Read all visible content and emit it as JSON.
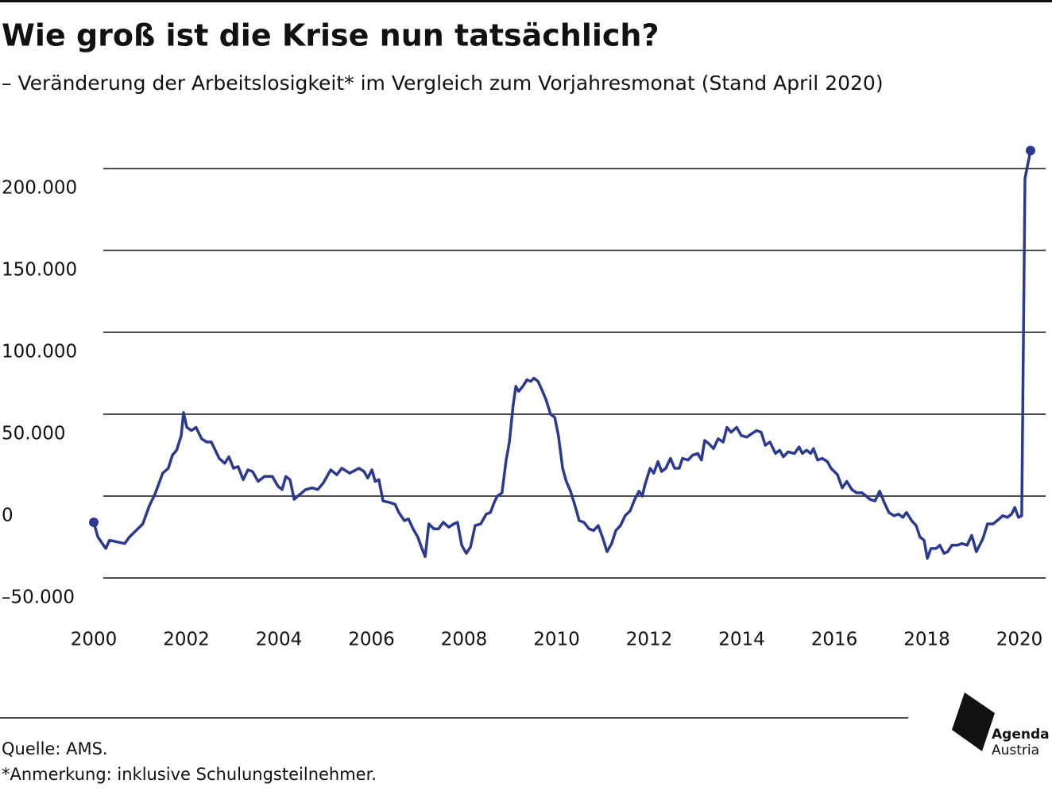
{
  "chart_data": {
    "type": "line",
    "title": "Wie groß ist die Krise nun tatsächlich?",
    "subtitle": "– Veränderung der Arbeitslosigkeit* im Vergleich zum Vorjahresmonat (Stand April 2020)",
    "x": [
      2000.0,
      2000.09,
      2000.26,
      2000.34,
      2000.67,
      2000.77,
      2001.06,
      2001.2,
      2001.32,
      2001.49,
      2001.61,
      2001.7,
      2001.79,
      2001.89,
      2001.94,
      2002.01,
      2002.11,
      2002.21,
      2002.33,
      2002.44,
      2002.54,
      2002.71,
      2002.83,
      2002.92,
      2003.02,
      2003.12,
      2003.23,
      2003.33,
      2003.43,
      2003.55,
      2003.69,
      2003.86,
      2003.98,
      2004.07,
      2004.15,
      2004.24,
      2004.33,
      2004.41,
      2004.58,
      2004.72,
      2004.84,
      2004.96,
      2005.12,
      2005.25,
      2005.36,
      2005.53,
      2005.73,
      2005.84,
      2005.92,
      2006.01,
      2006.08,
      2006.16,
      2006.25,
      2006.4,
      2006.51,
      2006.59,
      2006.71,
      2006.8,
      2006.9,
      2007.0,
      2007.09,
      2007.16,
      2007.24,
      2007.35,
      2007.45,
      2007.55,
      2007.67,
      2007.78,
      2007.86,
      2007.95,
      2008.05,
      2008.14,
      2008.24,
      2008.36,
      2008.48,
      2008.57,
      2008.65,
      2008.72,
      2008.82,
      2008.91,
      2008.98,
      2009.06,
      2009.12,
      2009.18,
      2009.27,
      2009.36,
      2009.44,
      2009.51,
      2009.6,
      2009.68,
      2009.77,
      2009.87,
      2009.96,
      2010.04,
      2010.13,
      2010.21,
      2010.3,
      2010.4,
      2010.49,
      2010.59,
      2010.7,
      2010.8,
      2010.9,
      2010.99,
      2011.09,
      2011.19,
      2011.28,
      2011.38,
      2011.48,
      2011.59,
      2011.69,
      2011.78,
      2011.85,
      2011.91,
      2012.02,
      2012.1,
      2012.19,
      2012.27,
      2012.36,
      2012.46,
      2012.55,
      2012.65,
      2012.72,
      2012.84,
      2012.94,
      2013.05,
      2013.13,
      2013.2,
      2013.29,
      2013.39,
      2013.49,
      2013.6,
      2013.68,
      2013.77,
      2013.89,
      2013.99,
      2014.11,
      2014.21,
      2014.32,
      2014.42,
      2014.51,
      2014.61,
      2014.73,
      2014.82,
      2014.9,
      2015.0,
      2015.14,
      2015.24,
      2015.31,
      2015.4,
      2015.49,
      2015.55,
      2015.64,
      2015.74,
      2015.85,
      2015.93,
      2016.07,
      2016.17,
      2016.27,
      2016.38,
      2016.48,
      2016.6,
      2016.69,
      2016.77,
      2016.88,
      2016.98,
      2017.08,
      2017.18,
      2017.29,
      2017.39,
      2017.48,
      2017.56,
      2017.67,
      2017.77,
      2017.85,
      2017.94,
      2018.01,
      2018.09,
      2018.2,
      2018.28,
      2018.37,
      2018.45,
      2018.54,
      2018.66,
      2018.76,
      2018.87,
      2018.97,
      2019.07,
      2019.21,
      2019.31,
      2019.43,
      2019.52,
      2019.64,
      2019.74,
      2019.83,
      2019.9,
      2019.98,
      2020.05,
      2020.12,
      2020.24
    ],
    "series": [
      {
        "color": "#2b3990",
        "values": [
          -16000,
          -25000,
          -32000,
          -27000,
          -29000,
          -25000,
          -17000,
          -6000,
          1000,
          14000,
          17000,
          25000,
          28000,
          37000,
          51000,
          42000,
          40000,
          42000,
          35000,
          33000,
          33000,
          23000,
          20000,
          24000,
          17000,
          18000,
          10000,
          16000,
          15000,
          9000,
          12000,
          12000,
          6000,
          4000,
          12000,
          10000,
          -2000,
          0,
          4000,
          5000,
          4000,
          8000,
          16000,
          13000,
          17000,
          14000,
          17000,
          15000,
          11000,
          16000,
          9000,
          10000,
          -3000,
          -4000,
          -5000,
          -10000,
          -15000,
          -14000,
          -20000,
          -25000,
          -32000,
          -37000,
          -17000,
          -20000,
          -20000,
          -16000,
          -19000,
          -17000,
          -16000,
          -30000,
          -35000,
          -31000,
          -18000,
          -17000,
          -11000,
          -10000,
          -4000,
          0,
          2000,
          22000,
          33000,
          55000,
          67000,
          64000,
          67000,
          71000,
          70000,
          72000,
          70000,
          65000,
          59000,
          50000,
          48000,
          37000,
          17000,
          9000,
          3000,
          -6000,
          -15000,
          -16000,
          -20000,
          -21000,
          -18000,
          -25000,
          -34000,
          -29000,
          -21000,
          -18000,
          -12000,
          -9000,
          -2000,
          3000,
          0,
          7000,
          17000,
          14000,
          21000,
          15000,
          17000,
          23000,
          17000,
          17000,
          23000,
          22000,
          25000,
          26000,
          22000,
          34000,
          32000,
          29000,
          35000,
          33000,
          42000,
          39000,
          42000,
          37000,
          36000,
          38000,
          40000,
          39000,
          31000,
          33000,
          26000,
          28000,
          24000,
          27000,
          26000,
          30000,
          26000,
          28000,
          26000,
          29000,
          22000,
          23000,
          21000,
          17000,
          13000,
          5000,
          9000,
          4000,
          2000,
          2000,
          0,
          -2000,
          -3000,
          3000,
          -4000,
          -10000,
          -12000,
          -11000,
          -13000,
          -10000,
          -15000,
          -18000,
          -25000,
          -27000,
          -38000,
          -32000,
          -32000,
          -30000,
          -35000,
          -34000,
          -30000,
          -30000,
          -29000,
          -30000,
          -24000,
          -34000,
          -26000,
          -17000,
          -17000,
          -15000,
          -12000,
          -13000,
          -11000,
          -7000,
          -13000,
          -12000,
          194000,
          211000
        ]
      }
    ],
    "xlim": [
      2000,
      2020
    ],
    "xticks": [
      2000,
      2002,
      2004,
      2006,
      2008,
      2010,
      2012,
      2014,
      2016,
      2018,
      2020
    ],
    "ylim": [
      -50000,
      200000
    ],
    "yticks": [
      {
        "value": -50000,
        "label": "–50.000"
      },
      0,
      {
        "value": 50000,
        "label": "50.000"
      },
      {
        "value": 100000,
        "label": "100.000"
      },
      {
        "value": 150000,
        "label": "150.000"
      },
      {
        "value": 200000,
        "label": "200.000"
      }
    ],
    "grid": true
  },
  "footer": {
    "source": "Quelle: AMS.",
    "note": "*Anmerkung: inklusive Schulungsteilnehmer.",
    "logo": [
      "Agenda",
      "Austria"
    ]
  }
}
